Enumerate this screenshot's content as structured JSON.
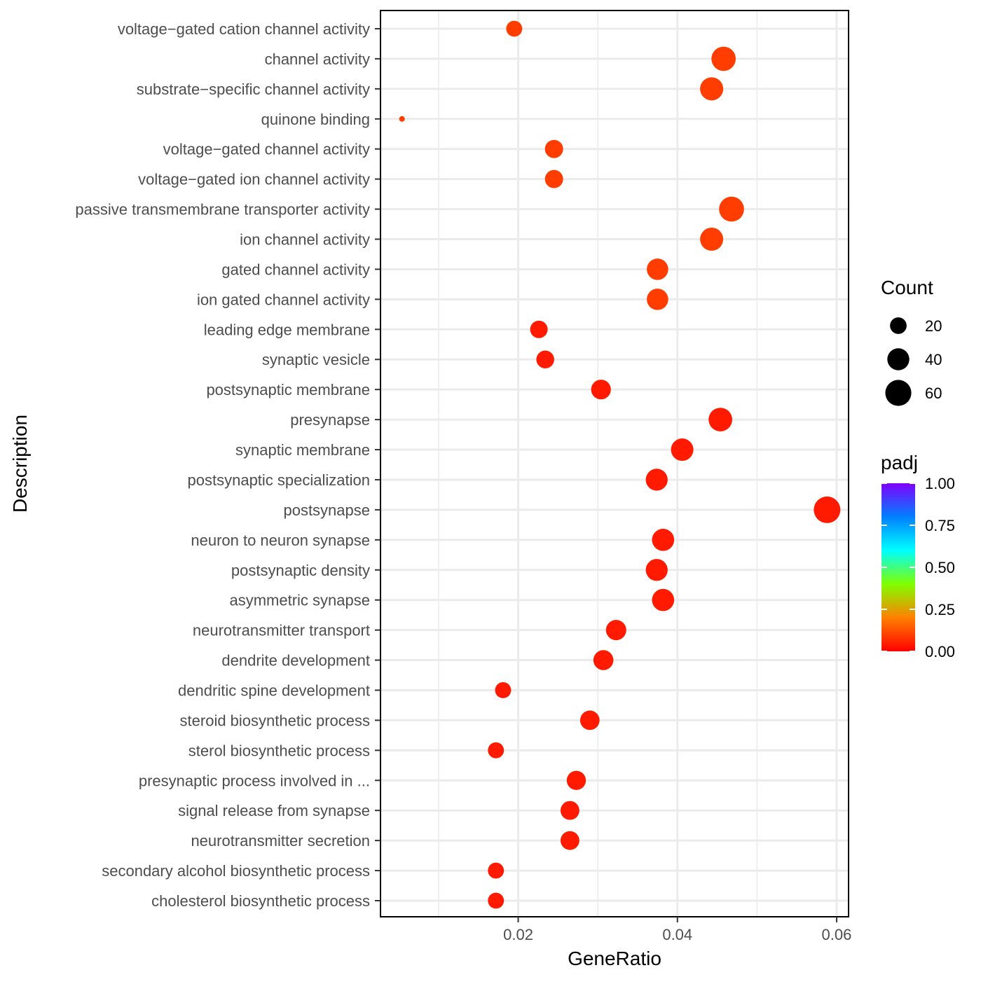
{
  "chart_data": {
    "type": "scatter",
    "xlabel": "GeneRatio",
    "ylabel": "Description",
    "xlim": [
      0.0027,
      0.0615
    ],
    "xticks": [
      0.02,
      0.04,
      0.06
    ],
    "xtick_labels": [
      "0.02",
      "0.04",
      "0.06"
    ],
    "grid": true,
    "points": [
      {
        "label": "voltage−gated cation channel activity",
        "x": 0.0195,
        "count": 16,
        "padj": 0.04
      },
      {
        "label": "channel activity",
        "x": 0.0458,
        "count": 45,
        "padj": 0.04
      },
      {
        "label": "substrate−specific channel activity",
        "x": 0.0443,
        "count": 40,
        "padj": 0.04
      },
      {
        "label": "quinone binding",
        "x": 0.0054,
        "count": 3,
        "padj": 0.04
      },
      {
        "label": "voltage−gated channel activity",
        "x": 0.0245,
        "count": 22,
        "padj": 0.04
      },
      {
        "label": "voltage−gated ion channel activity",
        "x": 0.0245,
        "count": 22,
        "padj": 0.04
      },
      {
        "label": "passive transmembrane transporter activity",
        "x": 0.0468,
        "count": 48,
        "padj": 0.04
      },
      {
        "label": "ion channel activity",
        "x": 0.0443,
        "count": 40,
        "padj": 0.04
      },
      {
        "label": "gated channel activity",
        "x": 0.0375,
        "count": 33,
        "padj": 0.04
      },
      {
        "label": "ion gated channel activity",
        "x": 0.0375,
        "count": 33,
        "padj": 0.04
      },
      {
        "label": "leading edge membrane",
        "x": 0.0226,
        "count": 20,
        "padj": 0.01
      },
      {
        "label": "synaptic vesicle",
        "x": 0.0234,
        "count": 21,
        "padj": 0.01
      },
      {
        "label": "postsynaptic membrane",
        "x": 0.0304,
        "count": 27,
        "padj": 0.01
      },
      {
        "label": "presynapse",
        "x": 0.0454,
        "count": 42,
        "padj": 0.01
      },
      {
        "label": "synaptic membrane",
        "x": 0.0406,
        "count": 37,
        "padj": 0.01
      },
      {
        "label": "postsynaptic specialization",
        "x": 0.0374,
        "count": 35,
        "padj": 0.01
      },
      {
        "label": "postsynapse",
        "x": 0.0588,
        "count": 56,
        "padj": 0.01
      },
      {
        "label": "neuron to neuron synapse",
        "x": 0.0382,
        "count": 36,
        "padj": 0.01
      },
      {
        "label": "postsynaptic density",
        "x": 0.0374,
        "count": 35,
        "padj": 0.01
      },
      {
        "label": "asymmetric synapse",
        "x": 0.0382,
        "count": 36,
        "padj": 0.01
      },
      {
        "label": "neurotransmitter transport",
        "x": 0.0323,
        "count": 29,
        "padj": 0.01
      },
      {
        "label": "dendrite development",
        "x": 0.0307,
        "count": 28,
        "padj": 0.01
      },
      {
        "label": "dendritic spine development",
        "x": 0.0181,
        "count": 16,
        "padj": 0.01
      },
      {
        "label": "steroid biosynthetic process",
        "x": 0.029,
        "count": 26,
        "padj": 0.01
      },
      {
        "label": "sterol biosynthetic process",
        "x": 0.0172,
        "count": 16,
        "padj": 0.01
      },
      {
        "label": "presynaptic process involved in ...",
        "x": 0.0273,
        "count": 25,
        "padj": 0.01
      },
      {
        "label": "signal release from synapse",
        "x": 0.0265,
        "count": 24,
        "padj": 0.01
      },
      {
        "label": "neurotransmitter secretion",
        "x": 0.0265,
        "count": 24,
        "padj": 0.01
      },
      {
        "label": "secondary alcohol biosynthetic process",
        "x": 0.0172,
        "count": 16,
        "padj": 0.01
      },
      {
        "label": "cholesterol biosynthetic process",
        "x": 0.0172,
        "count": 16,
        "padj": 0.01
      }
    ],
    "legend_size": {
      "title": "Count",
      "entries": [
        {
          "value": 20,
          "label": "20"
        },
        {
          "value": 40,
          "label": "40"
        },
        {
          "value": 60,
          "label": "60"
        }
      ]
    },
    "legend_color": {
      "title": "padj",
      "range": [
        0,
        1
      ],
      "ticks": [
        1.0,
        0.75,
        0.5,
        0.25,
        0.0
      ],
      "tick_labels": [
        "1.00",
        "0.75",
        "0.50",
        "0.25",
        "0.00"
      ],
      "gradient_colors": [
        "#FF0000",
        "#FF8000",
        "#80FF00",
        "#00FFFF",
        "#0080FF",
        "#8000FF"
      ]
    },
    "point_colors": {
      "high_sig": "#FF1A00",
      "med_sig": "#FF3D00"
    },
    "legend_placement": "right"
  }
}
